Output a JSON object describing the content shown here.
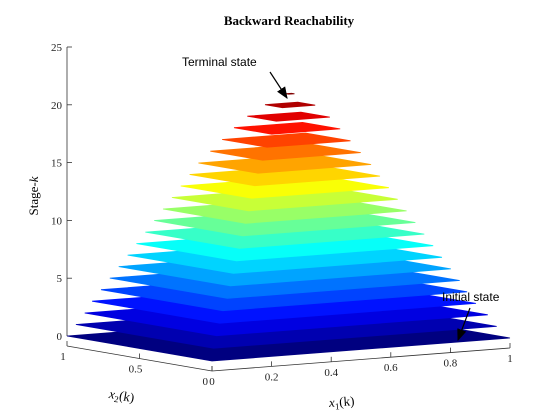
{
  "chart_data": {
    "type": "area",
    "title": "Backward Reachability",
    "zlabel": {
      "pre": "Stage-",
      "var": "k"
    },
    "xlabel": {
      "var": "x",
      "sub": "1",
      "arg": "(k)"
    },
    "ylabel": {
      "var": "x",
      "sub": "2",
      "arg": "(k)"
    },
    "x_ticks": [
      "0",
      "0.2",
      "0.4",
      "0.6",
      "0.8",
      "1"
    ],
    "y_ticks": [
      "0",
      "0.5",
      "1"
    ],
    "z_ticks": [
      "0",
      "5",
      "10",
      "15",
      "20",
      "25"
    ],
    "xlim": [
      0,
      1
    ],
    "ylim": [
      0,
      1
    ],
    "zlim": [
      0,
      25
    ],
    "colormap": "jet",
    "annotations": [
      {
        "text": "Terminal state",
        "stage": 21
      },
      {
        "text": "Initial state",
        "stage": 0
      }
    ],
    "stages": [
      {
        "k": 0,
        "x_range": [
          0,
          1
        ],
        "y_range": [
          0,
          1
        ]
      },
      {
        "k": 1,
        "x_range": [
          0.02,
          0.97
        ],
        "y_range": [
          0.03,
          0.98
        ]
      },
      {
        "k": 2,
        "x_range": [
          0.04,
          0.95
        ],
        "y_range": [
          0.05,
          0.96
        ]
      },
      {
        "k": 3,
        "x_range": [
          0.06,
          0.92
        ],
        "y_range": [
          0.07,
          0.95
        ]
      },
      {
        "k": 4,
        "x_range": [
          0.08,
          0.9
        ],
        "y_range": [
          0.09,
          0.93
        ]
      },
      {
        "k": 5,
        "x_range": [
          0.1,
          0.88
        ],
        "y_range": [
          0.1,
          0.91
        ]
      },
      {
        "k": 6,
        "x_range": [
          0.12,
          0.86
        ],
        "y_range": [
          0.12,
          0.89
        ]
      },
      {
        "k": 7,
        "x_range": [
          0.14,
          0.84
        ],
        "y_range": [
          0.14,
          0.87
        ]
      },
      {
        "k": 8,
        "x_range": [
          0.16,
          0.82
        ],
        "y_range": [
          0.16,
          0.85
        ]
      },
      {
        "k": 9,
        "x_range": [
          0.18,
          0.8
        ],
        "y_range": [
          0.18,
          0.83
        ]
      },
      {
        "k": 10,
        "x_range": [
          0.2,
          0.78
        ],
        "y_range": [
          0.2,
          0.81
        ]
      },
      {
        "k": 11,
        "x_range": [
          0.22,
          0.76
        ],
        "y_range": [
          0.22,
          0.79
        ]
      },
      {
        "k": 12,
        "x_range": [
          0.24,
          0.74
        ],
        "y_range": [
          0.24,
          0.77
        ]
      },
      {
        "k": 13,
        "x_range": [
          0.26,
          0.72
        ],
        "y_range": [
          0.26,
          0.75
        ]
      },
      {
        "k": 14,
        "x_range": [
          0.28,
          0.7
        ],
        "y_range": [
          0.28,
          0.73
        ]
      },
      {
        "k": 15,
        "x_range": [
          0.3,
          0.68
        ],
        "y_range": [
          0.3,
          0.71
        ]
      },
      {
        "k": 16,
        "x_range": [
          0.33,
          0.66
        ],
        "y_range": [
          0.33,
          0.69
        ]
      },
      {
        "k": 17,
        "x_range": [
          0.36,
          0.64
        ],
        "y_range": [
          0.36,
          0.67
        ]
      },
      {
        "k": 18,
        "x_range": [
          0.39,
          0.62
        ],
        "y_range": [
          0.39,
          0.65
        ]
      },
      {
        "k": 19,
        "x_range": [
          0.42,
          0.6
        ],
        "y_range": [
          0.42,
          0.62
        ]
      },
      {
        "k": 20,
        "x_range": [
          0.46,
          0.57
        ],
        "y_range": [
          0.46,
          0.58
        ]
      },
      {
        "k": 21,
        "x_range": [
          0.5,
          0.52
        ],
        "y_range": [
          0.5,
          0.52
        ]
      }
    ]
  }
}
